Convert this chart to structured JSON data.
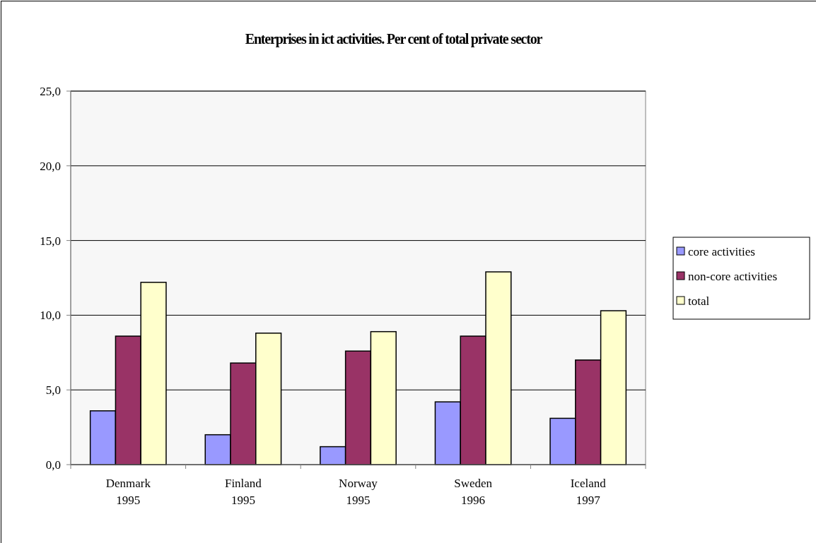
{
  "chart_data": {
    "type": "bar",
    "title": "Enterprises in ict activities. Per cent of total private sector",
    "categories": [
      "Denmark\n1995",
      "Finland\n1995",
      "Norway\n1995",
      "Sweden\n1996",
      "Iceland\n1997"
    ],
    "series": [
      {
        "name": "core activities",
        "color": "#9999ff",
        "values": [
          3.6,
          2.0,
          1.2,
          4.2,
          3.1
        ]
      },
      {
        "name": "non-core activities",
        "color": "#993366",
        "values": [
          8.6,
          6.8,
          7.6,
          8.6,
          7.0
        ]
      },
      {
        "name": "total",
        "color": "#ffffcc",
        "values": [
          12.2,
          8.8,
          8.9,
          12.9,
          10.3
        ]
      }
    ],
    "ylim": [
      0,
      25
    ],
    "yticks": [
      {
        "value": 0,
        "label": "0,0"
      },
      {
        "value": 5,
        "label": "5,0"
      },
      {
        "value": 10,
        "label": "10,0"
      },
      {
        "value": 15,
        "label": "15,0"
      },
      {
        "value": 20,
        "label": "20,0"
      },
      {
        "value": 25,
        "label": "25,0"
      }
    ],
    "grid": "y",
    "legend": "right"
  }
}
